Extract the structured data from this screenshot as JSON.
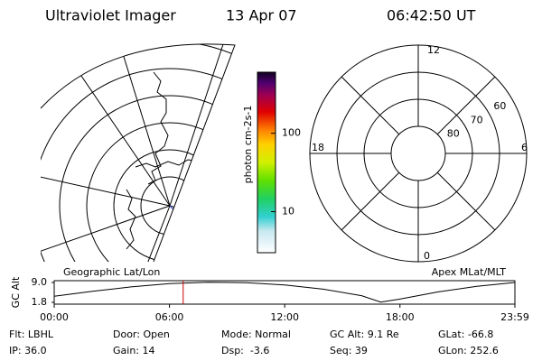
{
  "header": {
    "instrument": "Ultraviolet Imager",
    "date": "13 Apr 07",
    "time": "06:42:50 UT"
  },
  "map_label": "Geographic Lat/Lon",
  "polar": {
    "label": "Apex MLat/MLT",
    "mlt_labels": [
      "12",
      "18",
      "6",
      "0"
    ],
    "lat_rings": [
      60,
      70,
      80
    ]
  },
  "colorbar": {
    "label": "photon cm-2s-1",
    "log": true,
    "lim": [
      3,
      600
    ],
    "ticks": [
      10,
      100
    ]
  },
  "chart_data": {
    "type": "line",
    "ylabel": "GC Alt",
    "x": [
      0,
      2,
      4,
      6,
      8,
      10,
      12,
      14,
      16,
      17,
      18,
      20,
      22,
      23.983
    ],
    "series": [
      {
        "name": "GC Alt",
        "color": "#000000",
        "values": [
          4.0,
          5.8,
          7.4,
          8.6,
          9.1,
          8.9,
          8.1,
          6.6,
          4.2,
          1.9,
          3.0,
          5.6,
          7.6,
          9.0
        ]
      }
    ],
    "xlim": [
      0,
      23.983
    ],
    "xticks": [
      {
        "value": 0,
        "label": "00:00"
      },
      {
        "value": 6,
        "label": "06:00"
      },
      {
        "value": 12,
        "label": "12:00"
      },
      {
        "value": 18,
        "label": "18:00"
      },
      {
        "value": 23.983,
        "label": "23:59"
      }
    ],
    "ylim": [
      1.8,
      9.0
    ],
    "yticks": [
      1.8,
      {
        "value": 9.0,
        "label": "9.0"
      }
    ],
    "marker_x": 6.714,
    "marker_color": "#cc0000"
  },
  "info": {
    "rows": [
      [
        "Flt: LBHL",
        "Door: Open",
        "Mode: Normal",
        "GC Alt: 9.1 Re",
        "GLat: -66.8"
      ],
      [
        "IP: 36.0",
        "Gain: 14",
        "Dsp:  -3.6",
        "Seq: 39",
        "GLon: 252.6"
      ]
    ]
  }
}
